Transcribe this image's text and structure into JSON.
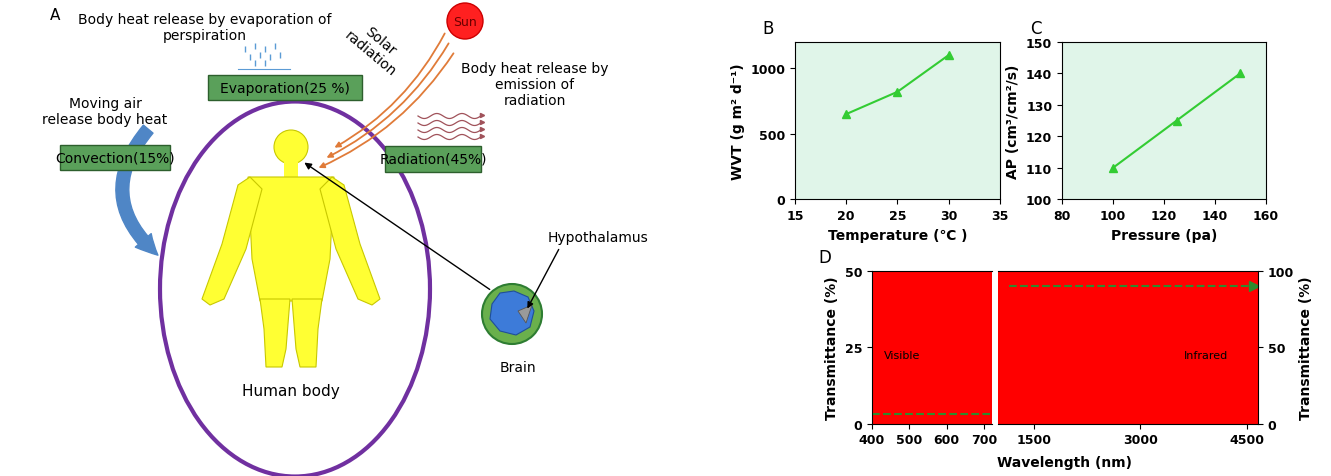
{
  "diagram": {
    "panel": "A",
    "evaporation": {
      "note": "Body heat release by evaporation of perspiration",
      "box": "Evaporation(25 %)"
    },
    "solar": {
      "label": "Solar radiation",
      "sun": "Sun"
    },
    "radiation": {
      "note": "Body heat release by emission of radiation",
      "box": "Radiation(45%)"
    },
    "convection": {
      "note": "Moving air release body heat",
      "box": "Convection(15%)"
    },
    "body": "Human body",
    "brain": {
      "label": "Brain",
      "part": "Hypothalamus"
    }
  },
  "chart_data": [
    {
      "type": "line",
      "title": "B",
      "xlabel": "Temperature (℃ )",
      "ylabel": "WVT (g m² d⁻¹)",
      "series": [
        {
          "x": [
            20,
            25,
            30
          ],
          "values": [
            650,
            820,
            1100
          ],
          "color": "#33cc33",
          "marker": "triangle",
          "line_style": "solid"
        }
      ],
      "xlim": [
        15,
        35
      ],
      "xticks": [
        15,
        20,
        25,
        30,
        35
      ],
      "ylim": [
        0,
        1200
      ],
      "yticks": [
        0,
        500,
        1000
      ]
    },
    {
      "type": "line",
      "title": "C",
      "xlabel": "Pressure (pa)",
      "ylabel": "AP (cm³/cm²/s)",
      "series": [
        {
          "x": [
            100,
            125,
            150
          ],
          "values": [
            110,
            125,
            140
          ],
          "color": "#33cc33",
          "marker": "triangle",
          "line_style": "solid"
        }
      ],
      "xlim": [
        80,
        160
      ],
      "xticks": [
        80,
        100,
        120,
        140,
        160
      ],
      "ylim": [
        100,
        150
      ],
      "yticks": [
        100,
        110,
        120,
        130,
        140,
        150
      ]
    },
    {
      "type": "line",
      "title": "D",
      "xlabel": "Wavelength (nm)",
      "ylabel": "Transmittance (%)",
      "y2label": "Transmittance (%)",
      "ylim": [
        0,
        50
      ],
      "yticks": [
        0,
        25,
        50
      ],
      "y2lim": [
        0,
        100
      ],
      "y2ticks": [
        0,
        50,
        100
      ],
      "series": [
        {
          "x": [
            400,
            715
          ],
          "values": [
            3,
            3
          ],
          "color": "#2e8b2e",
          "marker": "none",
          "line_style": "dashed",
          "xlim": [
            400,
            720
          ],
          "xticks": [
            400,
            500,
            600,
            700
          ],
          "annotation": "Visible"
        },
        {
          "x": [
            1150,
            4600
          ],
          "values": [
            90,
            90
          ],
          "color": "#2e8b2e",
          "marker": "arrow",
          "line_style": "dashed",
          "axis": "y2",
          "xlim": [
            1000,
            4650
          ],
          "xticks": [
            1500,
            3000,
            4500
          ],
          "annotation": "Infrared"
        }
      ]
    }
  ]
}
